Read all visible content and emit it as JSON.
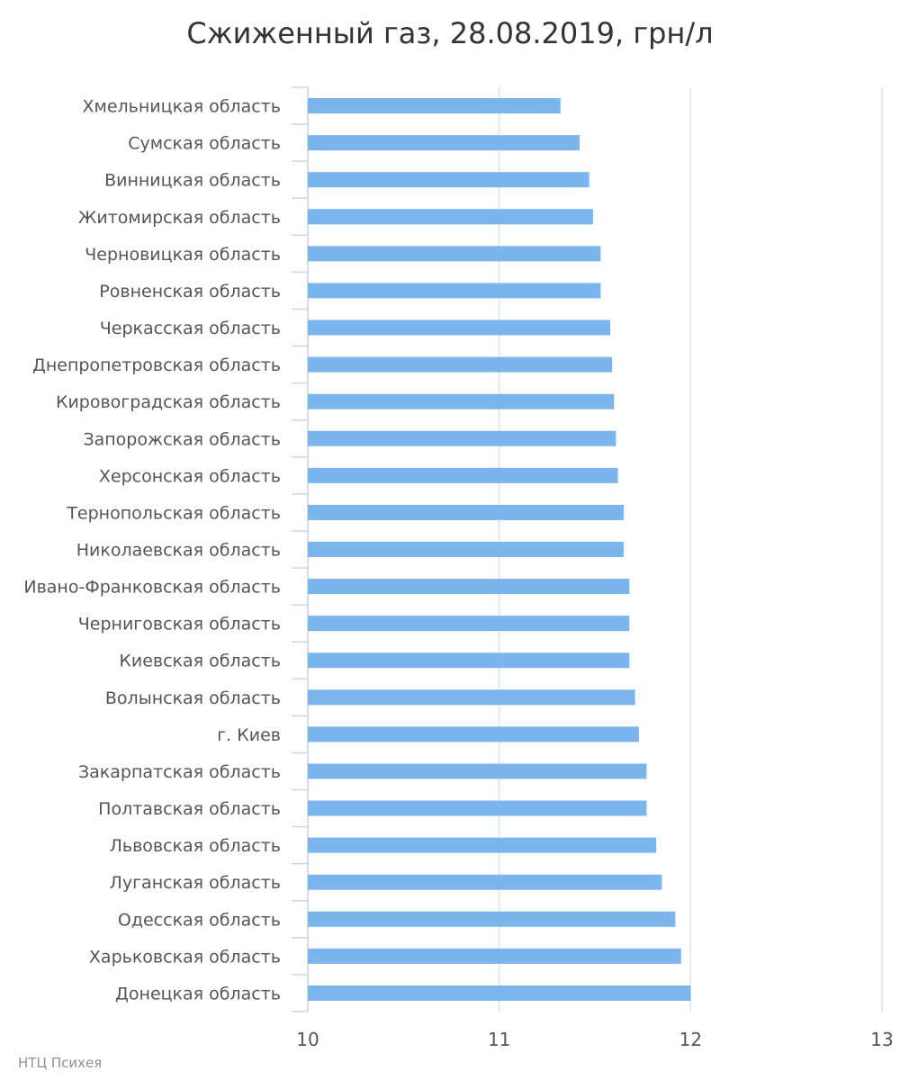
{
  "chart_data": {
    "type": "bar",
    "orientation": "horizontal",
    "title": "Сжиженный газ, 28.08.2019, грн/л",
    "categories": [
      "Хмельницкая область",
      "Сумская область",
      "Винницкая область",
      "Житомирская область",
      "Черновицкая область",
      "Ровненская область",
      "Черкасская область",
      "Днепропетровская область",
      "Кировоградская область",
      "Запорожская область",
      "Херсонская область",
      "Тернопольская область",
      "Николаевская область",
      "Ивано-Франковская область",
      "Черниговская область",
      "Киевская область",
      "Волынская область",
      "г. Киев",
      "Закарпатская область",
      "Полтавская область",
      "Львовская область",
      "Луганская область",
      "Одесская область",
      "Харьковская область",
      "Донецкая область"
    ],
    "values": [
      11.32,
      11.42,
      11.47,
      11.49,
      11.53,
      11.53,
      11.58,
      11.59,
      11.6,
      11.61,
      11.62,
      11.65,
      11.65,
      11.68,
      11.68,
      11.68,
      11.71,
      11.73,
      11.77,
      11.77,
      11.82,
      11.85,
      11.92,
      11.95,
      12.0
    ],
    "xlim": [
      10,
      13
    ],
    "xticks": [
      "10",
      "11",
      "12",
      "13"
    ],
    "grid": true,
    "bar_color": "#7cb5ec",
    "credit": "НТЦ Психея"
  }
}
